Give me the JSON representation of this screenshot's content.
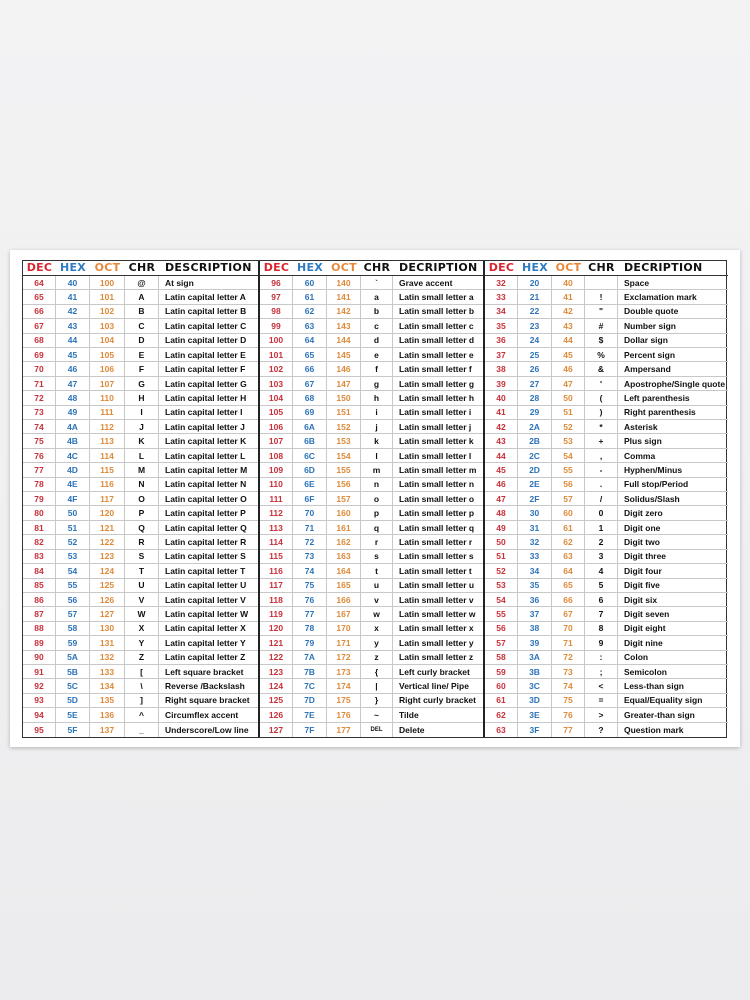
{
  "headers": [
    {
      "dec": "DEC",
      "hex": "HEX",
      "oct": "OCT",
      "chr": "CHR",
      "desc": "DESCRIPTION"
    },
    {
      "dec": "DEC",
      "hex": "HEX",
      "oct": "OCT",
      "chr": "CHR",
      "desc": "DECRIPTION"
    },
    {
      "dec": "DEC",
      "hex": "HEX",
      "oct": "OCT",
      "chr": "CHR",
      "desc": "DECRIPTION"
    }
  ],
  "colors": {
    "dec": "#c8303a",
    "hex": "#2d73b8",
    "oct": "#dd8a3a"
  },
  "sections": [
    [
      [
        "64",
        "40",
        "100",
        "@",
        "At sign"
      ],
      [
        "65",
        "41",
        "101",
        "A",
        "Latin capital letter A"
      ],
      [
        "66",
        "42",
        "102",
        "B",
        "Latin capital letter B"
      ],
      [
        "67",
        "43",
        "103",
        "C",
        "Latin capital letter C"
      ],
      [
        "68",
        "44",
        "104",
        "D",
        "Latin capital letter D"
      ],
      [
        "69",
        "45",
        "105",
        "E",
        "Latin capital letter E"
      ],
      [
        "70",
        "46",
        "106",
        "F",
        "Latin capital letter F"
      ],
      [
        "71",
        "47",
        "107",
        "G",
        "Latin capital letter G"
      ],
      [
        "72",
        "48",
        "110",
        "H",
        "Latin capital letter H"
      ],
      [
        "73",
        "49",
        "111",
        "I",
        "Latin capital letter I"
      ],
      [
        "74",
        "4A",
        "112",
        "J",
        "Latin capital letter J"
      ],
      [
        "75",
        "4B",
        "113",
        "K",
        "Latin capital letter K"
      ],
      [
        "76",
        "4C",
        "114",
        "L",
        "Latin capital letter L"
      ],
      [
        "77",
        "4D",
        "115",
        "M",
        "Latin capital letter M"
      ],
      [
        "78",
        "4E",
        "116",
        "N",
        "Latin capital letter N"
      ],
      [
        "79",
        "4F",
        "117",
        "O",
        "Latin capital letter O"
      ],
      [
        "80",
        "50",
        "120",
        "P",
        "Latin capital letter P"
      ],
      [
        "81",
        "51",
        "121",
        "Q",
        "Latin capital letter Q"
      ],
      [
        "82",
        "52",
        "122",
        "R",
        "Latin capital letter R"
      ],
      [
        "83",
        "53",
        "123",
        "S",
        "Latin capital letter S"
      ],
      [
        "84",
        "54",
        "124",
        "T",
        "Latin capital letter T"
      ],
      [
        "85",
        "55",
        "125",
        "U",
        "Latin capital letter U"
      ],
      [
        "86",
        "56",
        "126",
        "V",
        "Latin capital letter V"
      ],
      [
        "87",
        "57",
        "127",
        "W",
        "Latin capital letter W"
      ],
      [
        "88",
        "58",
        "130",
        "X",
        "Latin capital letter X"
      ],
      [
        "89",
        "59",
        "131",
        "Y",
        "Latin capital letter Y"
      ],
      [
        "90",
        "5A",
        "132",
        "Z",
        "Latin capital letter Z"
      ],
      [
        "91",
        "5B",
        "133",
        "[",
        "Left square bracket"
      ],
      [
        "92",
        "5C",
        "134",
        "\\",
        "Reverse /Backslash"
      ],
      [
        "93",
        "5D",
        "135",
        "]",
        "Right square bracket"
      ],
      [
        "94",
        "5E",
        "136",
        "^",
        "Circumflex accent"
      ],
      [
        "95",
        "5F",
        "137",
        "_",
        "Underscore/Low line"
      ]
    ],
    [
      [
        "96",
        "60",
        "140",
        "`",
        "Grave accent"
      ],
      [
        "97",
        "61",
        "141",
        "a",
        "Latin small letter a"
      ],
      [
        "98",
        "62",
        "142",
        "b",
        "Latin small letter b"
      ],
      [
        "99",
        "63",
        "143",
        "c",
        "Latin small letter c"
      ],
      [
        "100",
        "64",
        "144",
        "d",
        "Latin small letter d"
      ],
      [
        "101",
        "65",
        "145",
        "e",
        "Latin small letter e"
      ],
      [
        "102",
        "66",
        "146",
        "f",
        "Latin small letter f"
      ],
      [
        "103",
        "67",
        "147",
        "g",
        "Latin small letter g"
      ],
      [
        "104",
        "68",
        "150",
        "h",
        "Latin small letter h"
      ],
      [
        "105",
        "69",
        "151",
        "i",
        "Latin small letter i"
      ],
      [
        "106",
        "6A",
        "152",
        "j",
        "Latin small letter j"
      ],
      [
        "107",
        "6B",
        "153",
        "k",
        "Latin small letter k"
      ],
      [
        "108",
        "6C",
        "154",
        "l",
        "Latin small letter l"
      ],
      [
        "109",
        "6D",
        "155",
        "m",
        "Latin small letter m"
      ],
      [
        "110",
        "6E",
        "156",
        "n",
        "Latin small letter n"
      ],
      [
        "111",
        "6F",
        "157",
        "o",
        "Latin small letter o"
      ],
      [
        "112",
        "70",
        "160",
        "p",
        "Latin small letter p"
      ],
      [
        "113",
        "71",
        "161",
        "q",
        "Latin small letter q"
      ],
      [
        "114",
        "72",
        "162",
        "r",
        "Latin small letter r"
      ],
      [
        "115",
        "73",
        "163",
        "s",
        "Latin small letter s"
      ],
      [
        "116",
        "74",
        "164",
        "t",
        "Latin small letter t"
      ],
      [
        "117",
        "75",
        "165",
        "u",
        "Latin small letter u"
      ],
      [
        "118",
        "76",
        "166",
        "v",
        "Latin small letter v"
      ],
      [
        "119",
        "77",
        "167",
        "w",
        "Latin small letter w"
      ],
      [
        "120",
        "78",
        "170",
        "x",
        "Latin small letter x"
      ],
      [
        "121",
        "79",
        "171",
        "y",
        "Latin small letter y"
      ],
      [
        "122",
        "7A",
        "172",
        "z",
        "Latin small letter z"
      ],
      [
        "123",
        "7B",
        "173",
        "{",
        "Left curly bracket"
      ],
      [
        "124",
        "7C",
        "174",
        "|",
        "Vertical line/ Pipe"
      ],
      [
        "125",
        "7D",
        "175",
        "}",
        "Right curly bracket"
      ],
      [
        "126",
        "7E",
        "176",
        "~",
        "Tilde"
      ],
      [
        "127",
        "7F",
        "177",
        "DEL",
        "Delete"
      ]
    ],
    [
      [
        "32",
        "20",
        "40",
        "",
        "Space"
      ],
      [
        "33",
        "21",
        "41",
        "!",
        "Exclamation mark"
      ],
      [
        "34",
        "22",
        "42",
        "\"",
        "Double quote"
      ],
      [
        "35",
        "23",
        "43",
        "#",
        "Number sign"
      ],
      [
        "36",
        "24",
        "44",
        "$",
        "Dollar sign"
      ],
      [
        "37",
        "25",
        "45",
        "%",
        "Percent sign"
      ],
      [
        "38",
        "26",
        "46",
        "&",
        "Ampersand"
      ],
      [
        "39",
        "27",
        "47",
        "'",
        "Apostrophe/Single quote"
      ],
      [
        "40",
        "28",
        "50",
        "(",
        "Left parenthesis"
      ],
      [
        "41",
        "29",
        "51",
        ")",
        "Right parenthesis"
      ],
      [
        "42",
        "2A",
        "52",
        "*",
        "Asterisk"
      ],
      [
        "43",
        "2B",
        "53",
        "+",
        "Plus sign"
      ],
      [
        "44",
        "2C",
        "54",
        ",",
        "Comma"
      ],
      [
        "45",
        "2D",
        "55",
        "-",
        "Hyphen/Minus"
      ],
      [
        "46",
        "2E",
        "56",
        ".",
        "Full stop/Period"
      ],
      [
        "47",
        "2F",
        "57",
        "/",
        "Solidus/Slash"
      ],
      [
        "48",
        "30",
        "60",
        "0",
        "Digit zero"
      ],
      [
        "49",
        "31",
        "61",
        "1",
        "Digit one"
      ],
      [
        "50",
        "32",
        "62",
        "2",
        "Digit two"
      ],
      [
        "51",
        "33",
        "63",
        "3",
        "Digit three"
      ],
      [
        "52",
        "34",
        "64",
        "4",
        "Digit four"
      ],
      [
        "53",
        "35",
        "65",
        "5",
        "Digit five"
      ],
      [
        "54",
        "36",
        "66",
        "6",
        "Digit six"
      ],
      [
        "55",
        "37",
        "67",
        "7",
        "Digit seven"
      ],
      [
        "56",
        "38",
        "70",
        "8",
        "Digit eight"
      ],
      [
        "57",
        "39",
        "71",
        "9",
        "Digit nine"
      ],
      [
        "58",
        "3A",
        "72",
        ":",
        "Colon"
      ],
      [
        "59",
        "3B",
        "73",
        ";",
        "Semicolon"
      ],
      [
        "60",
        "3C",
        "74",
        "<",
        "Less-than sign"
      ],
      [
        "61",
        "3D",
        "75",
        "=",
        "Equal/Equality sign"
      ],
      [
        "62",
        "3E",
        "76",
        ">",
        "Greater-than sign"
      ],
      [
        "63",
        "3F",
        "77",
        "?",
        "Question mark"
      ]
    ]
  ]
}
